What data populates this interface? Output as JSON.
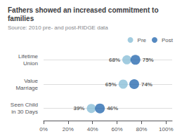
{
  "chart_data": {
    "type": "scatter",
    "title": "Fathers showed an increased commitment to families",
    "subtitle": "Source: 2010 pre- and post-RIDGE data",
    "categories": [
      "Lifetime\nUnion",
      "Value\nMarriage",
      "Seen Child\nin 30 Days"
    ],
    "series": [
      {
        "name": "Pre",
        "color": "#8bbfd8",
        "values": [
          0.68,
          0.65,
          0.39
        ],
        "value_labels": [
          "68%",
          "65%",
          "39%"
        ]
      },
      {
        "name": "Post",
        "color": "#2b6cb0",
        "values": [
          0.75,
          0.74,
          0.46
        ],
        "value_labels": [
          "75%",
          "74%",
          "46%"
        ]
      }
    ],
    "orientation": "horizontal",
    "marker": "circle",
    "data_labels": true,
    "xlim": [
      0.0,
      1.05
    ],
    "xticks": [
      {
        "value": 0.0,
        "label": "0%"
      },
      {
        "value": 0.2,
        "label": "20%"
      },
      {
        "value": 0.4,
        "label": "40%"
      },
      {
        "value": 0.6,
        "label": "60%"
      },
      {
        "value": 0.8,
        "label": "80%"
      },
      {
        "value": 1.0,
        "label": "100%"
      }
    ],
    "grid": true,
    "legend": "upper right"
  }
}
